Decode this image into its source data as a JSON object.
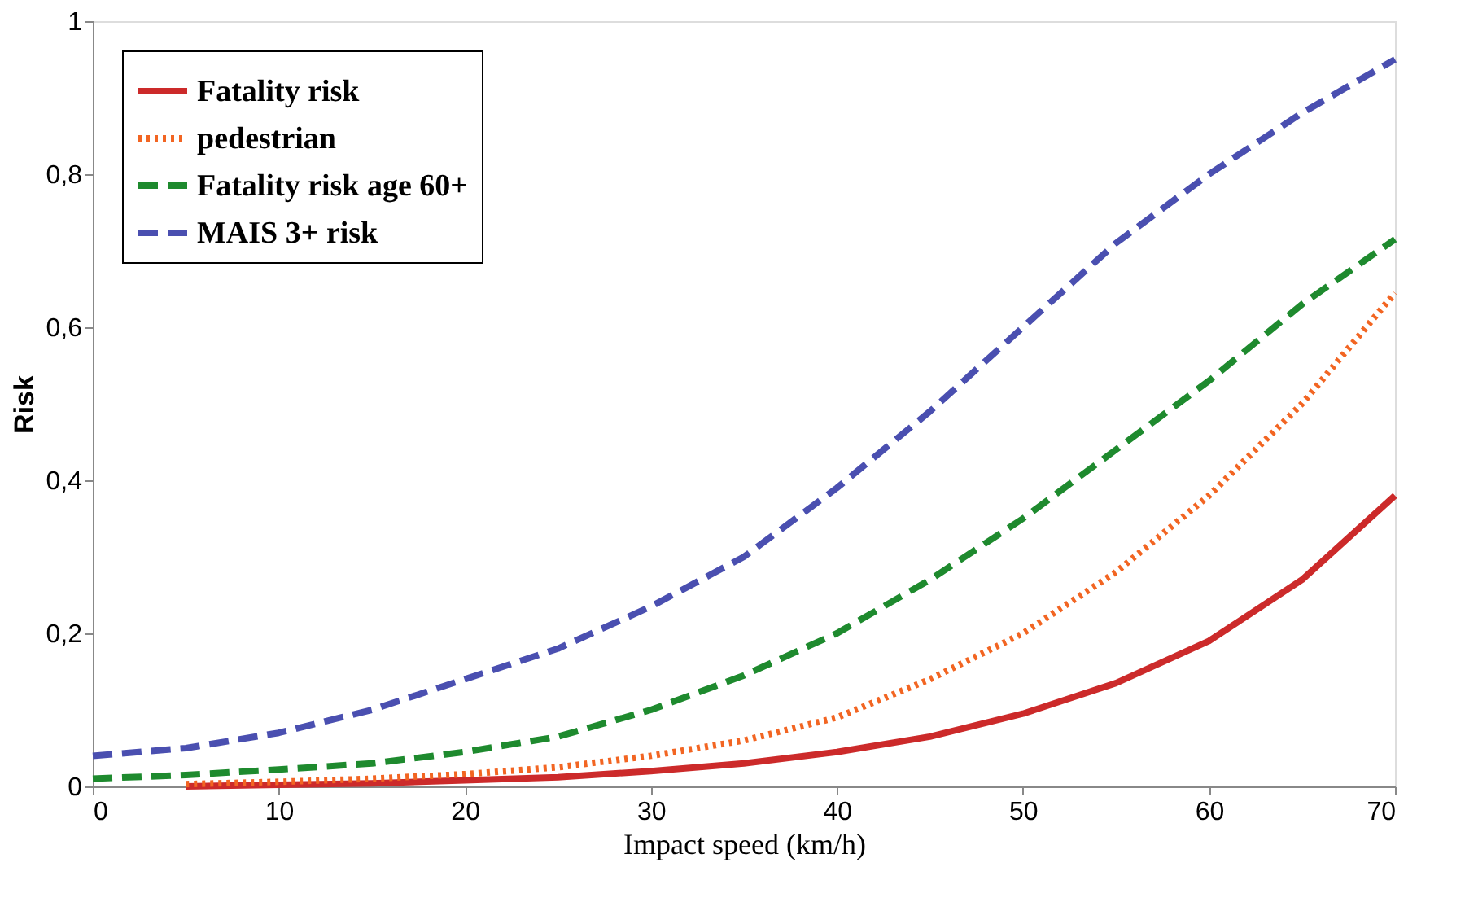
{
  "chart_data": {
    "type": "line",
    "xlabel": "Impact speed (km/h)",
    "ylabel": "Risk",
    "xlim": [
      0,
      70
    ],
    "xticks": [
      0,
      10,
      20,
      30,
      40,
      50,
      60,
      70
    ],
    "ylim": [
      0,
      1
    ],
    "yticks": [
      0,
      {
        "value": 0.2,
        "label": "0,2"
      },
      {
        "value": 0.4,
        "label": "0,4"
      },
      {
        "value": 0.6,
        "label": "0,6"
      },
      {
        "value": 0.8,
        "label": "0,8"
      },
      1
    ],
    "grid": false,
    "legend": "top left",
    "marker": "none",
    "series": [
      {
        "name": "Fatality risk",
        "color": "#cc2a2a",
        "line_style": "solid",
        "x": [
          5,
          10,
          15,
          20,
          25,
          30,
          35,
          40,
          45,
          50,
          55,
          60,
          65,
          70
        ],
        "values": [
          0,
          0.002,
          0.004,
          0.008,
          0.012,
          0.02,
          0.03,
          0.045,
          0.065,
          0.095,
          0.135,
          0.19,
          0.27,
          0.38
        ]
      },
      {
        "name": "pedestrian",
        "color": "#f26522",
        "line_style": "dotted",
        "x": [
          5,
          10,
          15,
          20,
          25,
          30,
          35,
          40,
          45,
          50,
          55,
          60,
          65,
          70
        ],
        "values": [
          0.003,
          0.006,
          0.01,
          0.016,
          0.025,
          0.04,
          0.06,
          0.09,
          0.14,
          0.2,
          0.28,
          0.38,
          0.5,
          0.645
        ]
      },
      {
        "name": "Fatality risk age 60+",
        "color": "#1e8a2e",
        "line_style": "dashed",
        "x": [
          0,
          5,
          10,
          15,
          20,
          25,
          30,
          35,
          40,
          45,
          50,
          55,
          60,
          65,
          70
        ],
        "values": [
          0.01,
          0.015,
          0.022,
          0.03,
          0.045,
          0.065,
          0.1,
          0.145,
          0.2,
          0.27,
          0.35,
          0.44,
          0.53,
          0.63,
          0.715
        ]
      },
      {
        "name": "MAIS 3+ risk",
        "color": "#4a4fb0",
        "line_style": "dashed",
        "x": [
          0,
          5,
          10,
          15,
          20,
          25,
          30,
          35,
          40,
          45,
          50,
          55,
          60,
          65,
          70
        ],
        "values": [
          0.04,
          0.05,
          0.07,
          0.1,
          0.14,
          0.18,
          0.235,
          0.3,
          0.39,
          0.49,
          0.6,
          0.71,
          0.8,
          0.88,
          0.95
        ]
      }
    ]
  }
}
